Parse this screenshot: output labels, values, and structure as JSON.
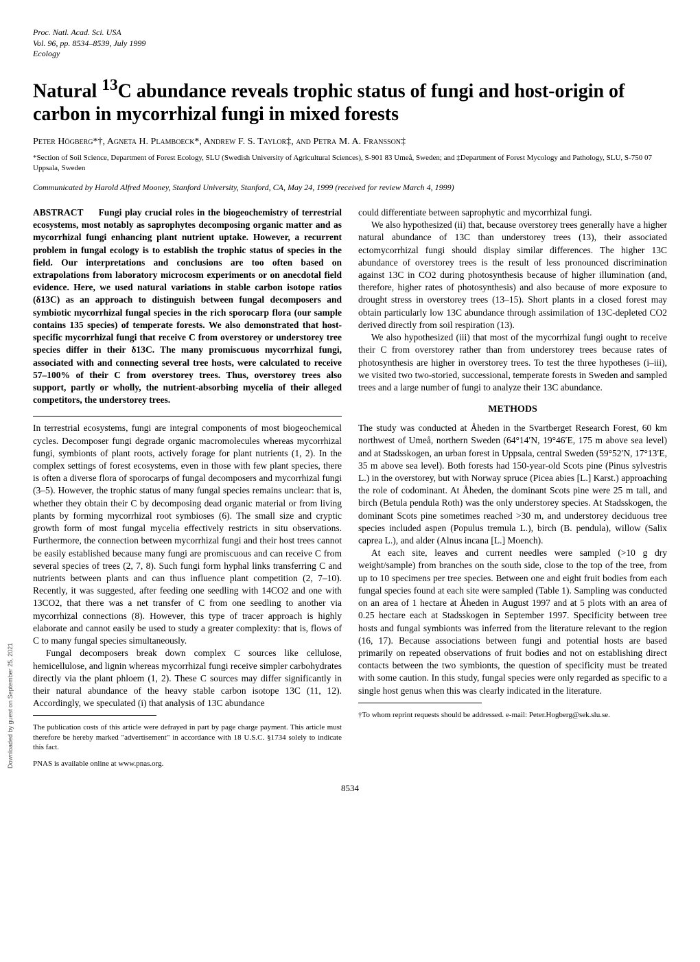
{
  "header": {
    "journal": "Proc. Natl. Acad. Sci. USA",
    "volume_pages": "Vol. 96, pp. 8534–8539, July 1999",
    "section": "Ecology"
  },
  "title_line1": "Natural ",
  "title_sup": "13",
  "title_line2": "C abundance reveals trophic status of fungi and host-origin of carbon in mycorrhizal fungi in mixed forests",
  "authors": "Peter Högberg*†, Agneta H. Plamboeck*, Andrew F. S. Taylor‡, and Petra M. A. Fransson‡",
  "affiliations": "*Section of Soil Science, Department of Forest Ecology, SLU (Swedish University of Agricultural Sciences), S-901 83 Umeå, Sweden; and ‡Department of Forest Mycology and Pathology, SLU, S-750 07 Uppsala, Sweden",
  "communicated": "Communicated by Harold Alfred Mooney, Stanford University, Stanford, CA, May 24, 1999 (received for review March 4, 1999)",
  "abstract_label": "ABSTRACT",
  "abstract": "Fungi play crucial roles in the biogeochemistry of terrestrial ecosystems, most notably as saprophytes decomposing organic matter and as mycorrhizal fungi enhancing plant nutrient uptake. However, a recurrent problem in fungal ecology is to establish the trophic status of species in the field. Our interpretations and conclusions are too often based on extrapolations from laboratory microcosm experiments or on anecdotal field evidence. Here, we used natural variations in stable carbon isotope ratios (δ13C) as an approach to distinguish between fungal decomposers and symbiotic mycorrhizal fungal species in the rich sporocarp flora (our sample contains 135 species) of temperate forests. We also demonstrated that host-specific mycorrhizal fungi that receive C from overstorey or understorey tree species differ in their δ13C. The many promiscuous mycorrhizal fungi, associated with and connecting several tree hosts, were calculated to receive 57–100% of their C from overstorey trees. Thus, overstorey trees also support, partly or wholly, the nutrient-absorbing mycelia of their alleged competitors, the understorey trees.",
  "intro_p1": "In terrestrial ecosystems, fungi are integral components of most biogeochemical cycles. Decomposer fungi degrade organic macromolecules whereas mycorrhizal fungi, symbionts of plant roots, actively forage for plant nutrients (1, 2). In the complex settings of forest ecosystems, even in those with few plant species, there is often a diverse flora of sporocarps of fungal decomposers and mycorrhizal fungi (3–5). However, the trophic status of many fungal species remains unclear: that is, whether they obtain their C by decomposing dead organic material or from living plants by forming mycorrhizal root symbioses (6). The small size and cryptic growth form of most fungal mycelia effectively restricts in situ observations. Furthermore, the connection between mycorrhizal fungi and their host trees cannot be easily established because many fungi are promiscuous and can receive C from several species of trees (2, 7, 8). Such fungi form hyphal links transferring C and nutrients between plants and can thus influence plant competition (2, 7–10). Recently, it was suggested, after feeding one seedling with 14CO2 and one with 13CO2, that there was a net transfer of C from one seedling to another via mycorrhizal connections (8). However, this type of tracer approach is highly elaborate and cannot easily be used to study a greater complexity: that is, flows of C to many fungal species simultaneously.",
  "intro_p2": "Fungal decomposers break down complex C sources like cellulose, hemicellulose, and lignin whereas mycorrhizal fungi receive simpler carbohydrates directly via the plant phloem (1, 2). These C sources may differ significantly in their natural abundance of the heavy stable carbon isotope 13C (11, 12). Accordingly, we speculated (i) that analysis of 13C abundance",
  "intro_p2b": "could differentiate between saprophytic and mycorrhizal fungi.",
  "intro_p3": "We also hypothesized (ii) that, because overstorey trees generally have a higher natural abundance of 13C than understorey trees (13), their associated ectomycorrhizal fungi should display similar differences. The higher 13C abundance of overstorey trees is the result of less pronounced discrimination against 13C in CO2 during photosynthesis because of higher illumination (and, therefore, higher rates of photosynthesis) and also because of more exposure to drought stress in overstorey trees (13–15). Short plants in a closed forest may obtain particularly low 13C abundance through assimilation of 13C-depleted CO2 derived directly from soil respiration (13).",
  "intro_p4": "We also hypothesized (iii) that most of the mycorrhizal fungi ought to receive their C from overstorey rather than from understorey trees because rates of photosynthesis are higher in overstorey trees. To test the three hypotheses (i–iii), we visited two two-storied, successional, temperate forests in Sweden and sampled trees and a large number of fungi to analyze their 13C abundance.",
  "methods_heading": "METHODS",
  "methods_p1": "The study was conducted at Åheden in the Svartberget Research Forest, 60 km northwest of Umeå, northern Sweden (64°14′N, 19°46′E, 175 m above sea level) and at Stadsskogen, an urban forest in Uppsala, central Sweden (59°52′N, 17°13′E, 35 m above sea level). Both forests had 150-year-old Scots pine (Pinus sylvestris L.) in the overstorey, but with Norway spruce (Picea abies [L.] Karst.) approaching the role of codominant. At Åheden, the dominant Scots pine were 25 m tall, and birch (Betula pendula Roth) was the only understorey species. At Stadsskogen, the dominant Scots pine sometimes reached >30 m, and understorey deciduous tree species included aspen (Populus tremula L.), birch (B. pendula), willow (Salix caprea L.), and alder (Alnus incana [L.] Moench).",
  "methods_p2": "At each site, leaves and current needles were sampled (>10 g dry weight/sample) from branches on the south side, close to the top of the tree, from up to 10 specimens per tree species. Between one and eight fruit bodies from each fungal species found at each site were sampled (Table 1). Sampling was conducted on an area of 1 hectare at Åheden in August 1997 and at 5 plots with an area of 0.25 hectare each at Stadsskogen in September 1997. Specificity between tree hosts and fungal symbionts was inferred from the literature relevant to the region (16, 17). Because associations between fungi and potential hosts are based primarily on repeated observations of fruit bodies and not on establishing direct contacts between the two symbionts, the question of specificity must be treated with some caution. In this study, fungal species were only regarded as specific to a single host genus when this was clearly indicated in the literature.",
  "footnote_left": "The publication costs of this article were defrayed in part by page charge payment. This article must therefore be hereby marked \"advertisement\" in accordance with 18 U.S.C. §1734 solely to indicate this fact.",
  "footnote_pnas": "PNAS is available online at www.pnas.org.",
  "footnote_right": "†To whom reprint requests should be addressed. e-mail: Peter.Hogberg@sek.slu.se.",
  "page_number": "8534",
  "side_text": "Downloaded by guest on September 25, 2021"
}
